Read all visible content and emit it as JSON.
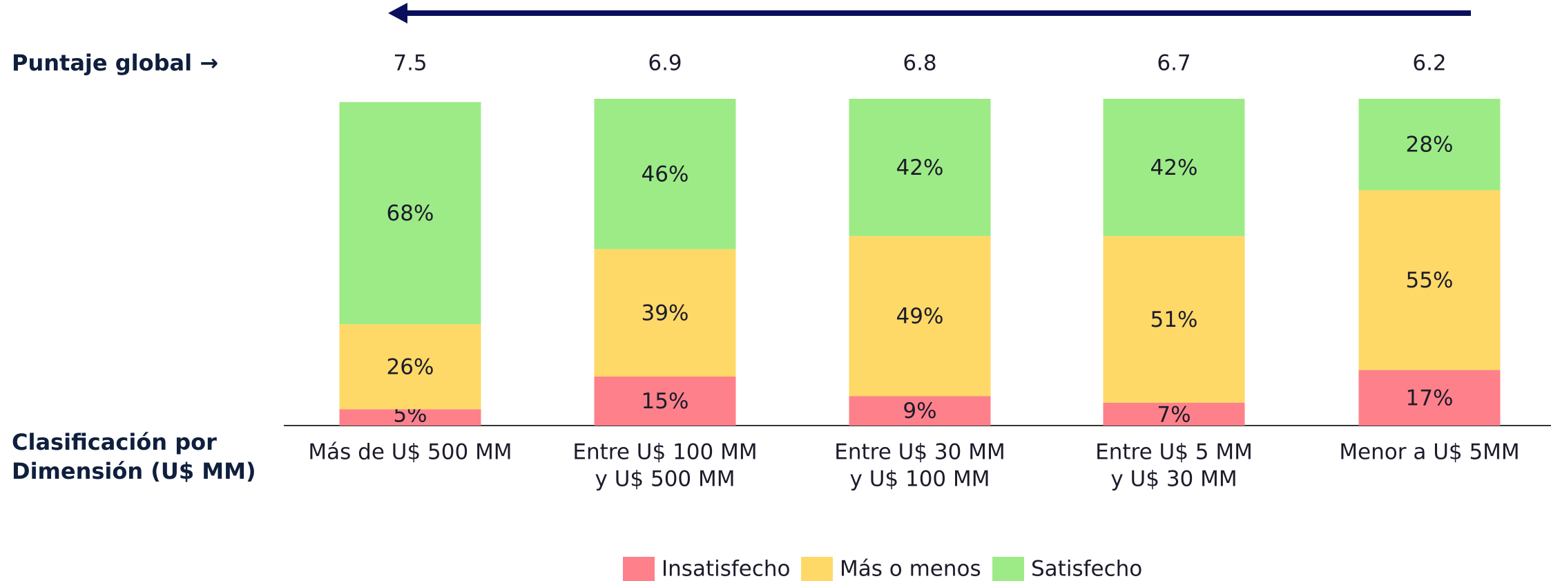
{
  "chart_data": {
    "type": "stacked_bar",
    "score_label": "Puntaje global →",
    "scores": [
      7.5,
      6.9,
      6.8,
      6.7,
      6.2
    ],
    "category_axis_label": [
      "Clasificación por",
      "Dimensión (U$ MM)"
    ],
    "categories": [
      [
        "Más de U$ 500 MM"
      ],
      [
        "Entre U$ 100 MM",
        "y U$ 500 MM"
      ],
      [
        "Entre U$ 30 MM",
        "y U$ 100 MM"
      ],
      [
        "Entre U$ 5 MM",
        "y U$ 30 MM"
      ],
      [
        "Menor a U$ 5MM"
      ]
    ],
    "ylim": [
      0,
      100
    ],
    "series": [
      {
        "name": "Insatisfecho",
        "color": "#fe808a",
        "values": [
          5,
          15,
          9,
          7,
          17
        ],
        "value_labels": [
          "5%",
          "15%",
          "9%",
          "7%",
          "17%"
        ]
      },
      {
        "name": "Más o menos",
        "color": "#fed967",
        "values": [
          26,
          39,
          49,
          51,
          55
        ],
        "value_labels": [
          "26%",
          "39%",
          "49%",
          "51%",
          "55%"
        ]
      },
      {
        "name": "Satisfecho",
        "color": "#9deb86",
        "values": [
          68,
          46,
          42,
          42,
          28
        ],
        "value_labels": [
          "68%",
          "46%",
          "42%",
          "42%",
          "28%"
        ]
      }
    ]
  }
}
